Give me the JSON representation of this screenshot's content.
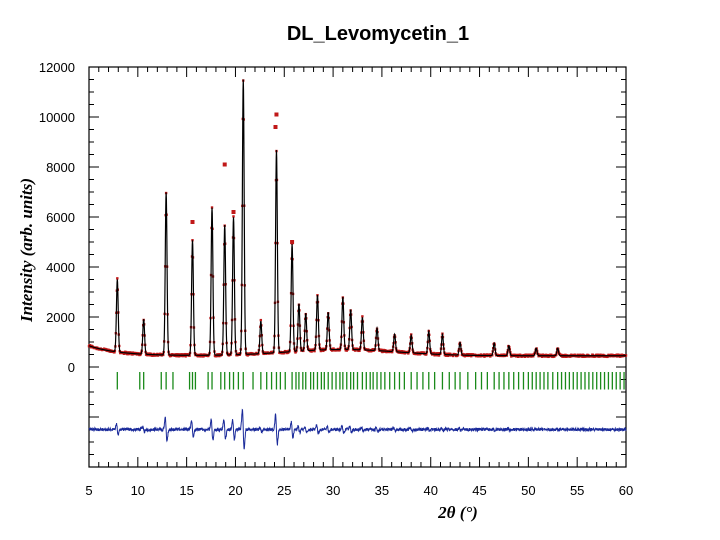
{
  "chart_data": {
    "type": "line",
    "title": "DL_Levomycetin_1",
    "xlabel": "2θ (°)",
    "ylabel": "Intensity (arb. units)",
    "xlim": [
      5,
      60
    ],
    "ylim": [
      -4000,
      12000
    ],
    "x_ticks": [
      5,
      10,
      15,
      20,
      25,
      30,
      35,
      40,
      45,
      50,
      55,
      60
    ],
    "y_ticks": [
      0,
      2000,
      4000,
      6000,
      8000,
      10000,
      12000
    ],
    "background_level": 450,
    "peaks": [
      {
        "x": 7.9,
        "h": 2900
      },
      {
        "x": 10.6,
        "h": 1400
      },
      {
        "x": 12.9,
        "h": 6500
      },
      {
        "x": 15.6,
        "h": 4600
      },
      {
        "x": 17.6,
        "h": 5900
      },
      {
        "x": 18.9,
        "h": 5200
      },
      {
        "x": 19.8,
        "h": 5500
      },
      {
        "x": 20.8,
        "h": 11000
      },
      {
        "x": 22.6,
        "h": 1300
      },
      {
        "x": 24.2,
        "h": 8100
      },
      {
        "x": 25.8,
        "h": 4300
      },
      {
        "x": 26.5,
        "h": 1900
      },
      {
        "x": 27.2,
        "h": 1500
      },
      {
        "x": 28.4,
        "h": 2200
      },
      {
        "x": 29.5,
        "h": 1500
      },
      {
        "x": 31.0,
        "h": 2100
      },
      {
        "x": 31.8,
        "h": 1600
      },
      {
        "x": 33.0,
        "h": 1300
      },
      {
        "x": 34.5,
        "h": 900
      },
      {
        "x": 36.3,
        "h": 700
      },
      {
        "x": 38.0,
        "h": 700
      },
      {
        "x": 39.8,
        "h": 900
      },
      {
        "x": 41.2,
        "h": 800
      },
      {
        "x": 43.0,
        "h": 500
      },
      {
        "x": 46.5,
        "h": 500
      },
      {
        "x": 48.0,
        "h": 400
      },
      {
        "x": 50.8,
        "h": 300
      },
      {
        "x": 53.0,
        "h": 300
      }
    ],
    "observed_outliers": [
      {
        "x": 24.2,
        "h": 10100
      },
      {
        "x": 24.1,
        "h": 9600
      },
      {
        "x": 18.9,
        "h": 8100
      },
      {
        "x": 15.6,
        "h": 5800
      },
      {
        "x": 25.8,
        "h": 5000
      },
      {
        "x": 19.8,
        "h": 6200
      }
    ],
    "reflection_positions": [
      7.9,
      10.2,
      10.6,
      12.4,
      12.9,
      13.6,
      15.3,
      15.6,
      15.9,
      17.2,
      17.6,
      18.5,
      18.9,
      19.4,
      19.8,
      20.3,
      20.8,
      21.8,
      22.6,
      23.2,
      23.7,
      24.2,
      24.6,
      25.1,
      25.8,
      26.2,
      26.5,
      26.9,
      27.2,
      27.7,
      28.0,
      28.4,
      28.8,
      29.1,
      29.5,
      29.9,
      30.3,
      30.7,
      31.0,
      31.4,
      31.8,
      32.1,
      32.5,
      33.0,
      33.4,
      33.8,
      34.1,
      34.5,
      34.9,
      35.3,
      35.8,
      36.3,
      36.8,
      37.3,
      38.0,
      38.6,
      39.2,
      39.8,
      40.4,
      41.2,
      41.9,
      42.5,
      43.0,
      43.8,
      44.6,
      45.2,
      45.8,
      46.5,
      47.0,
      47.5,
      48.0,
      48.5,
      49.0,
      49.5,
      50.0,
      50.4,
      50.8,
      51.2,
      51.6,
      52.0,
      52.5,
      53.0,
      53.4,
      53.8,
      54.2,
      54.6,
      55.0,
      55.4,
      55.8,
      56.2,
      56.6,
      57.0,
      57.4,
      57.8,
      58.2,
      58.6,
      59.0,
      59.4,
      59.8
    ],
    "difference_baseline": -2500,
    "series": [
      {
        "name": "observed",
        "color": "#c01818"
      },
      {
        "name": "calculated",
        "color": "#000000"
      },
      {
        "name": "reflections",
        "color": "#1a8a1a"
      },
      {
        "name": "difference",
        "color": "#1a2a9a"
      }
    ]
  }
}
